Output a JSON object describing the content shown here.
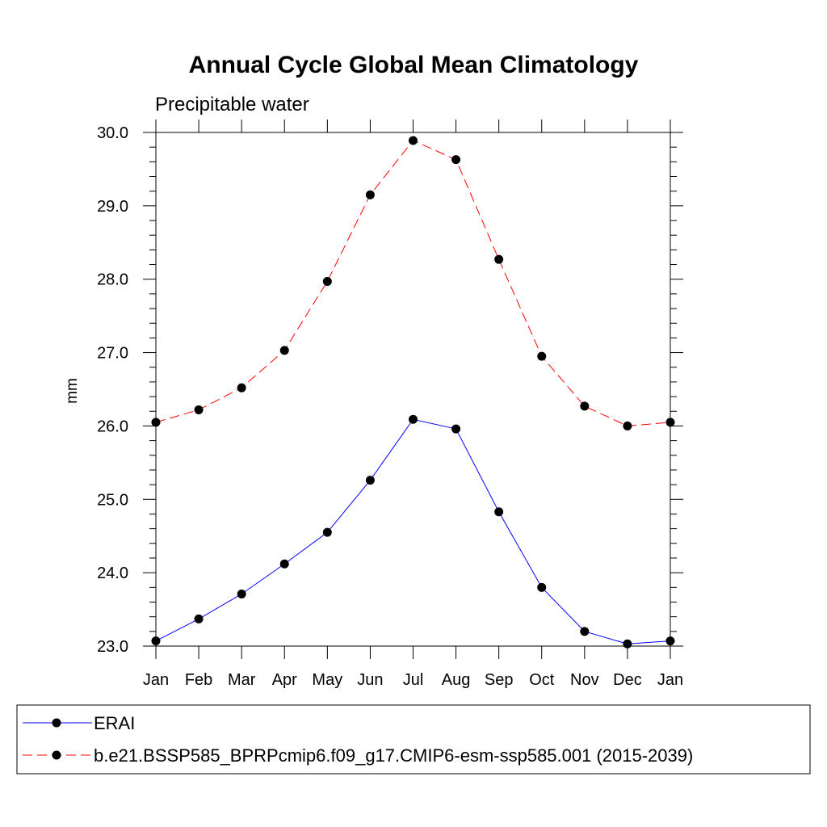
{
  "chart_data": {
    "type": "line",
    "title": "Annual Cycle Global Mean Climatology",
    "subtitle": "Precipitable water",
    "xlabel": "",
    "ylabel": "mm",
    "categories": [
      "Jan",
      "Feb",
      "Mar",
      "Apr",
      "May",
      "Jun",
      "Jul",
      "Aug",
      "Sep",
      "Oct",
      "Nov",
      "Dec",
      "Jan"
    ],
    "ylim": [
      23.0,
      30.0
    ],
    "yticks": [
      "23.0",
      "24.0",
      "25.0",
      "26.0",
      "27.0",
      "28.0",
      "29.0",
      "30.0"
    ],
    "grid": false,
    "legend_position": "bottom",
    "series": [
      {
        "name": "ERAI",
        "color": "#0000ff",
        "dash": "solid",
        "marker": "filled-circle",
        "values": [
          23.07,
          23.37,
          23.71,
          24.12,
          24.55,
          25.26,
          26.09,
          25.96,
          24.83,
          23.8,
          23.2,
          23.03,
          23.07
        ]
      },
      {
        "name": "b.e21.BSSP585_BPRPcmip6.f09_g17.CMIP6-esm-ssp585.001 (2015-2039)",
        "color": "#ff0000",
        "dash": "dashed",
        "marker": "filled-circle",
        "values": [
          26.05,
          26.22,
          26.52,
          27.03,
          27.97,
          29.15,
          29.89,
          29.63,
          28.27,
          26.95,
          26.27,
          26.0,
          26.05
        ]
      }
    ]
  }
}
